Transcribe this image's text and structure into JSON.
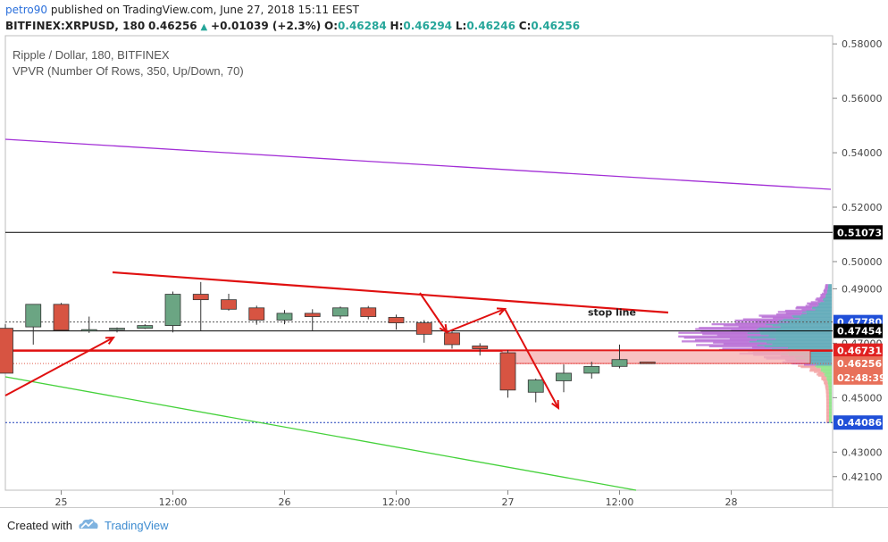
{
  "header": {
    "author": "petro90",
    "published": "published on TradingView.com, June 27, 2018 15:11 EEST",
    "symbol": "BITFINEX:XRPUSD, 180",
    "last": "0.46256",
    "change": "+0.01039 (+2.3%)",
    "o_label": "O:",
    "o": "0.46284",
    "h_label": "H:",
    "h": "0.46294",
    "l_label": "L:",
    "l": "0.46246",
    "c_label": "C:",
    "c": "0.46256"
  },
  "legend": {
    "title": "Ripple / Dollar, 180, BITFINEX",
    "indicator": "VPVR (Number Of Rows, 350, Up/Down, 70)"
  },
  "footer": {
    "created_with": "Created with",
    "brand": "TradingView"
  },
  "colors": {
    "up": "#6ba583",
    "down": "#d75442",
    "trend": "#e01010",
    "purple": "#a22ed6",
    "green": "#44d13a",
    "axis_bg": "#ffffff"
  },
  "chart_data": {
    "type": "candlestick",
    "ylim": [
      0.416,
      0.583
    ],
    "y_ticks": [
      "0.58000",
      "0.56000",
      "0.54000",
      "0.52000",
      "0.50000",
      "0.49000",
      "0.47000",
      "0.45000",
      "0.43000",
      "0.42100"
    ],
    "x_ticks": [
      "25",
      "12:00",
      "26",
      "12:00",
      "27",
      "12:00",
      "28"
    ],
    "x_tick_index": [
      2,
      6,
      10,
      14,
      18,
      22,
      26
    ],
    "candles": [
      {
        "o": 0.4755,
        "h": 0.477,
        "l": 0.459,
        "c": 0.459
      },
      {
        "o": 0.476,
        "h": 0.484,
        "l": 0.4695,
        "c": 0.4843
      },
      {
        "o": 0.4843,
        "h": 0.4848,
        "l": 0.4748,
        "c": 0.4748
      },
      {
        "o": 0.4748,
        "h": 0.4798,
        "l": 0.4738,
        "c": 0.475
      },
      {
        "o": 0.475,
        "h": 0.4758,
        "l": 0.474,
        "c": 0.4755
      },
      {
        "o": 0.4755,
        "h": 0.477,
        "l": 0.4752,
        "c": 0.4765
      },
      {
        "o": 0.4765,
        "h": 0.489,
        "l": 0.474,
        "c": 0.488
      },
      {
        "o": 0.488,
        "h": 0.4925,
        "l": 0.4745,
        "c": 0.486
      },
      {
        "o": 0.486,
        "h": 0.4882,
        "l": 0.482,
        "c": 0.4825
      },
      {
        "o": 0.483,
        "h": 0.4838,
        "l": 0.4768,
        "c": 0.4785
      },
      {
        "o": 0.4785,
        "h": 0.4822,
        "l": 0.477,
        "c": 0.481
      },
      {
        "o": 0.481,
        "h": 0.4825,
        "l": 0.4745,
        "c": 0.4798
      },
      {
        "o": 0.48,
        "h": 0.4835,
        "l": 0.479,
        "c": 0.483
      },
      {
        "o": 0.483,
        "h": 0.4837,
        "l": 0.4788,
        "c": 0.4798
      },
      {
        "o": 0.4795,
        "h": 0.4805,
        "l": 0.475,
        "c": 0.4775
      },
      {
        "o": 0.4775,
        "h": 0.4785,
        "l": 0.4702,
        "c": 0.4733
      },
      {
        "o": 0.4738,
        "h": 0.475,
        "l": 0.468,
        "c": 0.4695
      },
      {
        "o": 0.469,
        "h": 0.47,
        "l": 0.4655,
        "c": 0.468
      },
      {
        "o": 0.4665,
        "h": 0.4675,
        "l": 0.45,
        "c": 0.4528
      },
      {
        "o": 0.452,
        "h": 0.457,
        "l": 0.4483,
        "c": 0.4565
      },
      {
        "o": 0.4562,
        "h": 0.4622,
        "l": 0.452,
        "c": 0.459
      },
      {
        "o": 0.459,
        "h": 0.4632,
        "l": 0.457,
        "c": 0.4615
      },
      {
        "o": 0.4615,
        "h": 0.4695,
        "l": 0.4608,
        "c": 0.464
      },
      {
        "o": 0.4631,
        "h": 0.4632,
        "l": 0.4627,
        "c": 0.4625
      }
    ],
    "price_labels": [
      {
        "text": "0.51073",
        "value": 0.51073,
        "bg": "#000000",
        "fg": "#ffffff"
      },
      {
        "text": "0.47780",
        "value": 0.4778,
        "bg": "#1f4fd8",
        "fg": "#ffffff"
      },
      {
        "text": "0.47454",
        "value": 0.47454,
        "bg": "#000000",
        "fg": "#ffffff"
      },
      {
        "text": "0.46731",
        "value": 0.46731,
        "bg": "#e02020",
        "fg": "#ffffff"
      },
      {
        "text": "0.46256",
        "value": 0.46256,
        "bg": "#e8705a",
        "fg": "#ffffff"
      },
      {
        "text": "02:48:39",
        "value": 0.4574,
        "bg": "#e8705a",
        "fg": "#ffffff"
      },
      {
        "text": "0.44086",
        "value": 0.44086,
        "bg": "#1f4fd8",
        "fg": "#ffffff"
      }
    ],
    "annotations": [
      {
        "text": "stop line",
        "value": 0.4795
      }
    ]
  }
}
